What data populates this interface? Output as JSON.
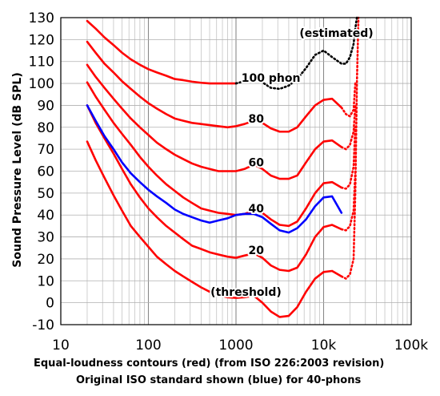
{
  "chart_data": {
    "type": "line",
    "xscale": "log",
    "xlim": [
      10,
      100000
    ],
    "ylim": [
      -10,
      130
    ],
    "grid": true,
    "ylabel": "Sound Pressure Level (dB SPL)",
    "xlabel_line1": "Equal-loudness contours (red) (from ISO 226:2003 revision)",
    "xlabel_line2": "Original ISO standard shown (blue) for 40-phons",
    "x_ticks": [
      {
        "value": 10,
        "label": "10"
      },
      {
        "value": 100,
        "label": "100"
      },
      {
        "value": 1000,
        "label": "1000"
      },
      {
        "value": 10000,
        "label": "10k"
      },
      {
        "value": 100000,
        "label": "100k"
      }
    ],
    "y_ticks": [
      {
        "value": 130,
        "label": "130"
      },
      {
        "value": 120,
        "label": "120"
      },
      {
        "value": 110,
        "label": "110"
      },
      {
        "value": 100,
        "label": "100"
      },
      {
        "value": 90,
        "label": "90"
      },
      {
        "value": 80,
        "label": "80"
      },
      {
        "value": 70,
        "label": "70"
      },
      {
        "value": 60,
        "label": "60"
      },
      {
        "value": 50,
        "label": "50"
      },
      {
        "value": 40,
        "label": "40"
      },
      {
        "value": 30,
        "label": "30"
      },
      {
        "value": 20,
        "label": "20"
      },
      {
        "value": 10,
        "label": "10"
      },
      {
        "value": 0,
        "label": "0"
      },
      {
        "value": -10,
        "label": "-10"
      }
    ],
    "annotations": [
      {
        "text": "(estimated)",
        "x": 14000,
        "y": 123
      },
      {
        "text": "100 phon",
        "x": 2500,
        "y": 102.5
      },
      {
        "text": "80",
        "x": 1700,
        "y": 84
      },
      {
        "text": "60",
        "x": 1700,
        "y": 64
      },
      {
        "text": "40",
        "x": 1700,
        "y": 43
      },
      {
        "text": "20",
        "x": 1700,
        "y": 24
      },
      {
        "text": "(threshold)",
        "x": 1300,
        "y": 5
      }
    ],
    "series": [
      {
        "color": "#ff0000",
        "style": "solid",
        "points": [
          [
            20,
            73.5
          ],
          [
            25,
            65
          ],
          [
            31.5,
            57
          ],
          [
            40,
            49
          ],
          [
            50,
            42
          ],
          [
            63,
            35
          ],
          [
            80,
            30
          ],
          [
            100,
            25.5
          ],
          [
            125,
            21
          ],
          [
            160,
            17.5
          ],
          [
            200,
            14.5
          ],
          [
            250,
            12
          ],
          [
            315,
            9.5
          ],
          [
            400,
            7
          ],
          [
            500,
            5
          ],
          [
            630,
            3.5
          ],
          [
            800,
            2.5
          ],
          [
            1000,
            2.2
          ],
          [
            1250,
            2.5
          ],
          [
            1600,
            3.2
          ],
          [
            2000,
            0
          ],
          [
            2500,
            -4
          ],
          [
            3150,
            -6.5
          ],
          [
            4000,
            -6
          ],
          [
            5000,
            -2
          ],
          [
            6300,
            5
          ],
          [
            8000,
            11
          ],
          [
            10000,
            14
          ],
          [
            12500,
            14.5
          ],
          [
            16000,
            12
          ]
        ]
      },
      {
        "color": "#ff0000",
        "style": "dotted",
        "points": [
          [
            16000,
            12
          ],
          [
            18000,
            11
          ],
          [
            20000,
            13
          ],
          [
            22000,
            20
          ],
          [
            23000,
            50
          ],
          [
            24000,
            100
          ],
          [
            25000,
            130
          ]
        ]
      },
      {
        "color": "#ff0000",
        "style": "solid",
        "points": [
          [
            20,
            90
          ],
          [
            25,
            82
          ],
          [
            31.5,
            75
          ],
          [
            40,
            68
          ],
          [
            50,
            61
          ],
          [
            63,
            54
          ],
          [
            80,
            48
          ],
          [
            100,
            43
          ],
          [
            125,
            39
          ],
          [
            160,
            35
          ],
          [
            200,
            32
          ],
          [
            250,
            29
          ],
          [
            315,
            26
          ],
          [
            400,
            24.5
          ],
          [
            500,
            23
          ],
          [
            630,
            22
          ],
          [
            800,
            21
          ],
          [
            1000,
            20.5
          ],
          [
            1250,
            21.5
          ],
          [
            1600,
            22.5
          ],
          [
            2000,
            20.5
          ],
          [
            2500,
            17
          ],
          [
            3150,
            15
          ],
          [
            4000,
            14.5
          ],
          [
            5000,
            16
          ],
          [
            6300,
            22
          ],
          [
            8000,
            30
          ],
          [
            10000,
            34.5
          ],
          [
            12500,
            35.5
          ],
          [
            16000,
            33.5
          ]
        ]
      },
      {
        "color": "#ff0000",
        "style": "dotted",
        "points": [
          [
            16000,
            33.5
          ],
          [
            18000,
            33
          ],
          [
            20000,
            35
          ],
          [
            22000,
            42
          ],
          [
            23000,
            60
          ]
        ]
      },
      {
        "color": "#ff0000",
        "style": "solid",
        "points": [
          [
            20,
            100.5
          ],
          [
            25,
            94
          ],
          [
            31.5,
            88
          ],
          [
            40,
            82
          ],
          [
            50,
            77
          ],
          [
            63,
            72
          ],
          [
            80,
            66.5
          ],
          [
            100,
            62
          ],
          [
            125,
            58
          ],
          [
            160,
            54
          ],
          [
            200,
            51
          ],
          [
            250,
            48
          ],
          [
            315,
            45.5
          ],
          [
            400,
            43
          ],
          [
            500,
            42
          ],
          [
            630,
            41
          ],
          [
            800,
            40.5
          ],
          [
            1000,
            40
          ],
          [
            1250,
            40.5
          ],
          [
            1600,
            42
          ],
          [
            2000,
            41
          ],
          [
            2500,
            38
          ],
          [
            3150,
            35.5
          ],
          [
            4000,
            35
          ],
          [
            5000,
            37
          ],
          [
            6300,
            43
          ],
          [
            8000,
            50
          ],
          [
            10000,
            54.5
          ],
          [
            12500,
            55
          ],
          [
            16000,
            52.5
          ]
        ]
      },
      {
        "color": "#ff0000",
        "style": "dotted",
        "points": [
          [
            16000,
            52.5
          ],
          [
            18000,
            52
          ],
          [
            20000,
            54
          ],
          [
            22000,
            62
          ],
          [
            23000,
            80
          ]
        ]
      },
      {
        "color": "#ff0000",
        "style": "solid",
        "points": [
          [
            20,
            108.5
          ],
          [
            25,
            103
          ],
          [
            31.5,
            98
          ],
          [
            40,
            93
          ],
          [
            50,
            88.5
          ],
          [
            63,
            84
          ],
          [
            80,
            80
          ],
          [
            100,
            76.5
          ],
          [
            125,
            73
          ],
          [
            160,
            70
          ],
          [
            200,
            67.5
          ],
          [
            250,
            65.5
          ],
          [
            315,
            63.5
          ],
          [
            400,
            62
          ],
          [
            500,
            61
          ],
          [
            630,
            60
          ],
          [
            800,
            60
          ],
          [
            1000,
            60
          ],
          [
            1250,
            61
          ],
          [
            1600,
            63
          ],
          [
            2000,
            61
          ],
          [
            2500,
            58
          ],
          [
            3150,
            56.5
          ],
          [
            4000,
            56.5
          ],
          [
            5000,
            58
          ],
          [
            6300,
            64
          ],
          [
            8000,
            70
          ],
          [
            10000,
            73.5
          ],
          [
            12500,
            74
          ],
          [
            16000,
            71
          ]
        ]
      },
      {
        "color": "#ff0000",
        "style": "dotted",
        "points": [
          [
            16000,
            71
          ],
          [
            18000,
            70
          ],
          [
            20000,
            72
          ],
          [
            22000,
            78
          ],
          [
            23000,
            90
          ]
        ]
      },
      {
        "color": "#ff0000",
        "style": "solid",
        "points": [
          [
            20,
            119
          ],
          [
            25,
            114
          ],
          [
            31.5,
            109
          ],
          [
            40,
            105
          ],
          [
            50,
            101
          ],
          [
            63,
            97.5
          ],
          [
            80,
            94
          ],
          [
            100,
            91
          ],
          [
            125,
            88.5
          ],
          [
            160,
            86
          ],
          [
            200,
            84
          ],
          [
            250,
            83
          ],
          [
            315,
            82
          ],
          [
            400,
            81.5
          ],
          [
            500,
            81
          ],
          [
            630,
            80.5
          ],
          [
            800,
            80
          ],
          [
            1000,
            80.5
          ],
          [
            1250,
            81.5
          ],
          [
            1600,
            83
          ],
          [
            2000,
            82
          ],
          [
            2500,
            79.5
          ],
          [
            3150,
            78
          ],
          [
            4000,
            78
          ],
          [
            5000,
            80
          ],
          [
            6300,
            85
          ],
          [
            8000,
            90
          ],
          [
            10000,
            92.5
          ],
          [
            12500,
            93
          ],
          [
            16000,
            89
          ]
        ]
      },
      {
        "color": "#ff0000",
        "style": "dotted",
        "points": [
          [
            16000,
            89
          ],
          [
            18000,
            86
          ],
          [
            20000,
            85
          ],
          [
            22000,
            88
          ],
          [
            23000,
            100
          ]
        ]
      },
      {
        "color": "#ff0000",
        "style": "solid",
        "points": [
          [
            20,
            128.5
          ],
          [
            25,
            125
          ],
          [
            31.5,
            121
          ],
          [
            40,
            117.5
          ],
          [
            50,
            114
          ],
          [
            63,
            111
          ],
          [
            80,
            108.5
          ],
          [
            100,
            106.5
          ],
          [
            125,
            105
          ],
          [
            160,
            103.5
          ],
          [
            200,
            102
          ],
          [
            250,
            101.5
          ],
          [
            315,
            100.8
          ],
          [
            400,
            100.3
          ],
          [
            500,
            100
          ],
          [
            630,
            100
          ],
          [
            800,
            100
          ],
          [
            1000,
            100
          ]
        ]
      },
      {
        "color": "#000000",
        "style": "dotted",
        "points": [
          [
            1000,
            100
          ],
          [
            1250,
            101
          ],
          [
            1600,
            102.5
          ],
          [
            2000,
            100.5
          ],
          [
            2500,
            98
          ],
          [
            3150,
            97.5
          ],
          [
            4000,
            99
          ],
          [
            5000,
            102
          ],
          [
            6300,
            107
          ],
          [
            8000,
            113
          ],
          [
            10000,
            115
          ],
          [
            12500,
            112
          ],
          [
            16000,
            109
          ],
          [
            18000,
            109
          ],
          [
            20000,
            112
          ],
          [
            22000,
            118
          ],
          [
            23000,
            125
          ],
          [
            24000,
            130
          ]
        ]
      },
      {
        "color": "#0000ff",
        "style": "solid",
        "points": [
          [
            20,
            90
          ],
          [
            25,
            83
          ],
          [
            31.5,
            76
          ],
          [
            40,
            70
          ],
          [
            50,
            64
          ],
          [
            63,
            59
          ],
          [
            80,
            55
          ],
          [
            100,
            51.5
          ],
          [
            125,
            48.5
          ],
          [
            160,
            45.5
          ],
          [
            200,
            42.5
          ],
          [
            250,
            40.5
          ],
          [
            315,
            39
          ],
          [
            400,
            37.5
          ],
          [
            500,
            36.5
          ],
          [
            630,
            37.5
          ],
          [
            800,
            38.5
          ],
          [
            1000,
            40
          ],
          [
            1250,
            40.5
          ],
          [
            1600,
            40.5
          ],
          [
            2000,
            39
          ],
          [
            2500,
            36
          ],
          [
            3150,
            33
          ],
          [
            4000,
            32
          ],
          [
            5000,
            34
          ],
          [
            6300,
            38
          ],
          [
            8000,
            44
          ],
          [
            10000,
            48
          ],
          [
            12500,
            48.5
          ],
          [
            16000,
            41
          ]
        ]
      }
    ]
  }
}
